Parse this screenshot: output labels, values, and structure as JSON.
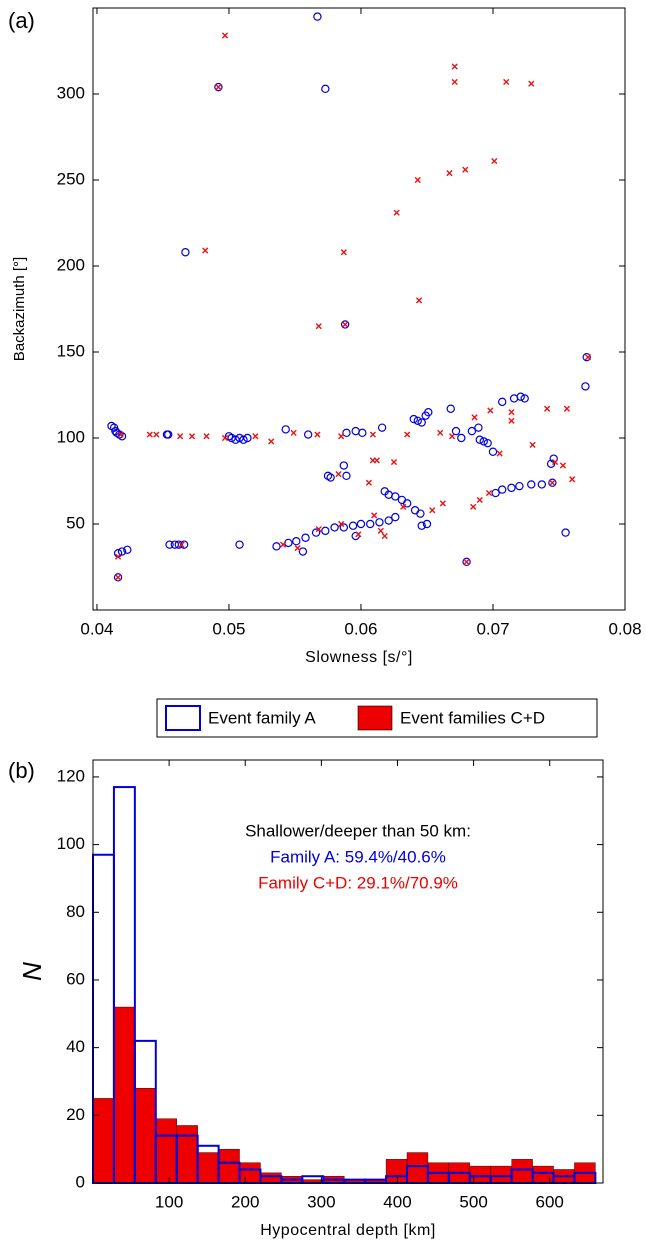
{
  "chart_data": [
    {
      "type": "scatter",
      "panel_label": "(a)",
      "xlabel": "Slowness [s/°]",
      "ylabel": "Backazimuth [°]",
      "xlim": [
        0.0397,
        0.08
      ],
      "xticks": [
        0.04,
        0.05,
        0.06,
        0.07,
        0.08
      ],
      "ylim": [
        0,
        350
      ],
      "yticks": [
        50,
        100,
        150,
        200,
        250,
        300
      ],
      "grid": false,
      "series": [
        {
          "name": "Event family A",
          "color": "#0000dd",
          "marker": "circle",
          "x": [
            0.0567,
            0.0492,
            0.0573,
            0.0467,
            0.0588,
            0.0771,
            0.077,
            0.0411,
            0.0413,
            0.0414,
            0.0415,
            0.0417,
            0.0419,
            0.0453,
            0.0454,
            0.05,
            0.0502,
            0.0505,
            0.0508,
            0.0511,
            0.0514,
            0.0543,
            0.056,
            0.0589,
            0.0596,
            0.0601,
            0.0616,
            0.064,
            0.0643,
            0.0646,
            0.0649,
            0.0651,
            0.0668,
            0.0672,
            0.0676,
            0.0684,
            0.0689,
            0.069,
            0.0693,
            0.0696,
            0.07,
            0.0707,
            0.0716,
            0.0721,
            0.0724,
            0.0744,
            0.0746,
            0.0745,
            0.0737,
            0.0729,
            0.072,
            0.0714,
            0.0707,
            0.0702,
            0.0587,
            0.0589,
            0.0575,
            0.0577,
            0.0618,
            0.0621,
            0.0626,
            0.0631,
            0.0635,
            0.0641,
            0.0645,
            0.0626,
            0.0621,
            0.0614,
            0.0607,
            0.06,
            0.0594,
            0.0587,
            0.058,
            0.0573,
            0.0566,
            0.0558,
            0.0551,
            0.0545,
            0.0536,
            0.0556,
            0.0596,
            0.0646,
            0.065,
            0.0455,
            0.0459,
            0.0462,
            0.0466,
            0.0508,
            0.0416,
            0.0419,
            0.0423,
            0.0416,
            0.068,
            0.0755
          ],
          "values": [
            345,
            304,
            303,
            208,
            166,
            147,
            130,
            107,
            106,
            104,
            103,
            102,
            101,
            102,
            102,
            101,
            100,
            99,
            100,
            99,
            100,
            105,
            102,
            103,
            104,
            103,
            106,
            111,
            110,
            109,
            113,
            115,
            117,
            104,
            100,
            104,
            106,
            99,
            98,
            97,
            92,
            121,
            123,
            124,
            123,
            85,
            88,
            74,
            73,
            73,
            72,
            71,
            70,
            68,
            84,
            78,
            78,
            77,
            69,
            67,
            66,
            64,
            62,
            58,
            56,
            54,
            52,
            51,
            50,
            50,
            49,
            48,
            48,
            46,
            45,
            42,
            40,
            39,
            37,
            34,
            43,
            49,
            50,
            38,
            38,
            38,
            38,
            38,
            33,
            34,
            35,
            19,
            28,
            45
          ]
        },
        {
          "name": "Event families C+D",
          "color": "#ee1111",
          "marker": "cross",
          "x": [
            0.0497,
            0.0671,
            0.0671,
            0.071,
            0.0729,
            0.0492,
            0.0701,
            0.0679,
            0.0667,
            0.0643,
            0.0627,
            0.0482,
            0.0587,
            0.0644,
            0.0588,
            0.0568,
            0.0772,
            0.0418,
            0.044,
            0.0445,
            0.0463,
            0.0472,
            0.0483,
            0.0497,
            0.052,
            0.0532,
            0.0549,
            0.0567,
            0.0585,
            0.0609,
            0.0635,
            0.066,
            0.0669,
            0.0686,
            0.0698,
            0.0714,
            0.0741,
            0.0756,
            0.0705,
            0.0714,
            0.073,
            0.0747,
            0.0753,
            0.0609,
            0.0612,
            0.0625,
            0.0606,
            0.0583,
            0.061,
            0.0615,
            0.0618,
            0.0568,
            0.0585,
            0.0632,
            0.0654,
            0.0662,
            0.0685,
            0.069,
            0.0697,
            0.0745,
            0.076,
            0.0552,
            0.0541,
            0.0464,
            0.0416,
            0.0416,
            0.068,
            0.0598
          ],
          "values": [
            334,
            316,
            307,
            307,
            306,
            304,
            261,
            256,
            254,
            250,
            231,
            209,
            208,
            180,
            166,
            165,
            147,
            102,
            102,
            102,
            101,
            101,
            101,
            100,
            101,
            98,
            103,
            102,
            101,
            102,
            102,
            103,
            101,
            112,
            116,
            115,
            117,
            117,
            91,
            110,
            96,
            86,
            84,
            87,
            87,
            86,
            74,
            79,
            55,
            46,
            43,
            47,
            50,
            60,
            58,
            62,
            60,
            64,
            68,
            74,
            76,
            36,
            38,
            38,
            31,
            19,
            28,
            44
          ]
        }
      ]
    },
    {
      "type": "histogram",
      "panel_label": "(b)",
      "xlabel": "Hypocentral depth [km]",
      "ylabel": "N",
      "xlim": [
        0,
        670
      ],
      "xticks": [
        100,
        200,
        300,
        400,
        500,
        600
      ],
      "ylim": [
        0,
        125
      ],
      "yticks": [
        0,
        20,
        40,
        60,
        80,
        100,
        120
      ],
      "grid": false,
      "bins": [
        0,
        27.5,
        55,
        82.5,
        110,
        137.5,
        165,
        192.5,
        220,
        247.5,
        275,
        302.5,
        330,
        357.5,
        385,
        412.5,
        440,
        467.5,
        495,
        522.5,
        550,
        577.5,
        605,
        632.5,
        660
      ],
      "series": [
        {
          "name": "Event family A",
          "color": "#0000dd",
          "filled": false,
          "values": [
            97,
            117,
            42,
            14,
            14,
            11,
            6,
            4,
            2,
            1,
            2,
            1,
            1,
            1,
            2,
            5,
            3,
            3,
            2,
            2,
            4,
            3,
            2,
            3
          ]
        },
        {
          "name": "Event families C+D",
          "color": "#ee0000",
          "filled": true,
          "values": [
            25,
            52,
            28,
            19,
            17,
            9,
            10,
            6,
            3,
            2,
            1,
            2,
            1,
            1,
            7,
            9,
            6,
            6,
            5,
            5,
            7,
            5,
            4,
            6
          ]
        }
      ],
      "draw_order": [
        1,
        0
      ],
      "annotations": [
        {
          "text": "Shallower/deeper than 50 km:",
          "color": "#000000"
        },
        {
          "text": "Family A: 59.4%/40.6%",
          "color": "#0000dd"
        },
        {
          "text": "Family C+D: 29.1%/70.9%",
          "color": "#ee0000"
        }
      ]
    }
  ]
}
